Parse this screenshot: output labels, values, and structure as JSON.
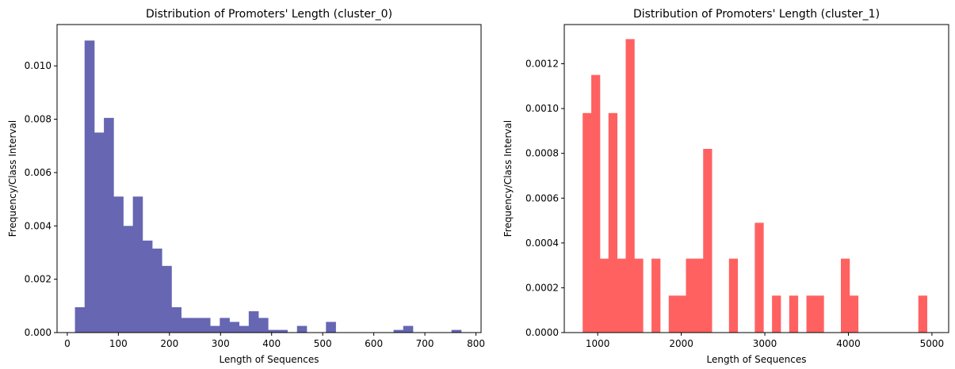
{
  "chart_data": [
    {
      "type": "bar",
      "title": "Distribution of Promoters' Length (cluster_0)",
      "xlabel": "Length of Sequences",
      "ylabel": "Frequency/Class Interval",
      "color": "#6666b3",
      "xlim": [
        -20,
        810
      ],
      "ylim": [
        0,
        0.01155
      ],
      "xticks": [
        0,
        100,
        200,
        300,
        400,
        500,
        600,
        700,
        800
      ],
      "yticks": [
        0.0,
        0.002,
        0.004,
        0.006,
        0.008,
        0.01
      ],
      "ytick_labels": [
        "0.000",
        "0.002",
        "0.004",
        "0.006",
        "0.008",
        "0.010"
      ],
      "bin_start": 15,
      "bin_width": 18.9,
      "values": [
        0.00095,
        0.01095,
        0.0075,
        0.00805,
        0.0051,
        0.004,
        0.0051,
        0.00345,
        0.00315,
        0.0025,
        0.00095,
        0.00055,
        0.00055,
        0.00055,
        0.00025,
        0.00055,
        0.0004,
        0.00025,
        0.0008,
        0.00055,
        0.0001,
        0.0001,
        0,
        0.00025,
        0,
        0,
        0.0004,
        0,
        0,
        0,
        0,
        0,
        0,
        0.0001,
        0.00025,
        0,
        0,
        0,
        0,
        0.0001
      ],
      "grid": false
    },
    {
      "type": "bar",
      "title": "Distribution of Promoters' Length (cluster_1)",
      "xlabel": "Length of Sequences",
      "ylabel": "Frequency/Class Interval",
      "color": "#ff6161",
      "xlim": [
        600,
        5200
      ],
      "ylim": [
        0,
        0.001375
      ],
      "xticks": [
        1000,
        2000,
        3000,
        4000,
        5000
      ],
      "yticks": [
        0.0,
        0.0002,
        0.0004,
        0.0006,
        0.0008,
        0.001,
        0.0012
      ],
      "ytick_labels": [
        "0.0000",
        "0.0002",
        "0.0004",
        "0.0006",
        "0.0008",
        "0.0010",
        "0.0012"
      ],
      "bin_start": 820,
      "bin_width": 103,
      "values": [
        0.00098,
        0.00115,
        0.00033,
        0.00098,
        0.00033,
        0.00131,
        0.00033,
        0,
        0.00033,
        0,
        0.000165,
        0.000165,
        0.00033,
        0.00033,
        0.00082,
        0,
        0,
        0.00033,
        0,
        0,
        0.00049,
        0,
        0.000165,
        0,
        0.000165,
        0,
        0.000165,
        0.000165,
        0,
        0,
        0.00033,
        0.000165,
        0,
        0,
        0,
        0,
        0,
        0,
        0,
        0.000165
      ],
      "grid": false
    }
  ]
}
